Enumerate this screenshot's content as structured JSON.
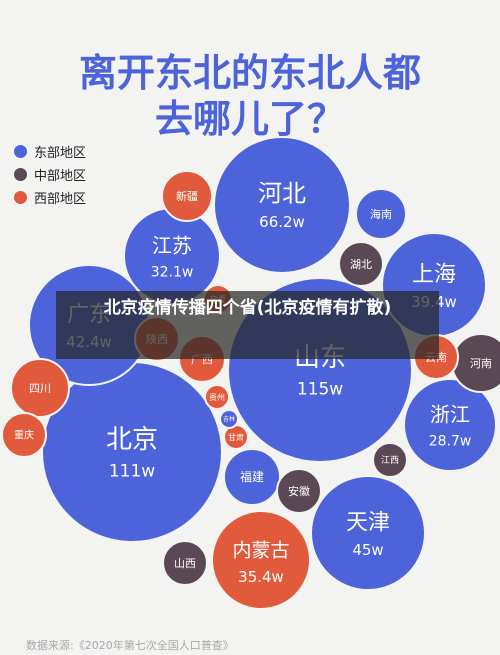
{
  "title": {
    "line1": "离开东北的东北人都",
    "line2": "去哪儿了？"
  },
  "legend": [
    {
      "label": "东部地区",
      "color": "#4d63d9"
    },
    {
      "label": "中部地区",
      "color": "#5a4855"
    },
    {
      "label": "西部地区",
      "color": "#e05a3b"
    }
  ],
  "banner": "北京疫情传播四个省(北京疫情有扩散)",
  "source": "数据来源:《2020年第七次全国人口普查》",
  "chart_data": {
    "type": "bubble",
    "unit": "w",
    "series_colors": {
      "东部地区": "#4d63d9",
      "中部地区": "#5a4855",
      "西部地区": "#e05a3b"
    },
    "bubbles": [
      {
        "name": "北京",
        "value": 111,
        "value_label": "111w",
        "region": "东部地区"
      },
      {
        "name": "山东",
        "value": 115,
        "value_label": "115w",
        "region": "东部地区"
      },
      {
        "name": "河北",
        "value": 66.2,
        "value_label": "66.2w",
        "region": "东部地区"
      },
      {
        "name": "天津",
        "value": 45,
        "value_label": "45w",
        "region": "东部地区"
      },
      {
        "name": "广东",
        "value": 42.4,
        "value_label": "42.4w",
        "region": "东部地区"
      },
      {
        "name": "上海",
        "value": 39.4,
        "value_label": "39.4w",
        "region": "东部地区"
      },
      {
        "name": "内蒙古",
        "value": 35.4,
        "value_label": "35.4w",
        "region": "西部地区"
      },
      {
        "name": "江苏",
        "value": 32.1,
        "value_label": "32.1w",
        "region": "东部地区"
      },
      {
        "name": "浙江",
        "value": 28.7,
        "value_label": "28.7w",
        "region": "东部地区"
      },
      {
        "name": "新疆",
        "value": null,
        "value_label": "",
        "region": "西部地区"
      },
      {
        "name": "海南",
        "value": null,
        "value_label": "",
        "region": "东部地区"
      },
      {
        "name": "湖北",
        "value": null,
        "value_label": "",
        "region": "中部地区"
      },
      {
        "name": "河南",
        "value": null,
        "value_label": "",
        "region": "中部地区"
      },
      {
        "name": "云南",
        "value": null,
        "value_label": "",
        "region": "西部地区"
      },
      {
        "name": "四川",
        "value": null,
        "value_label": "",
        "region": "西部地区"
      },
      {
        "name": "重庆",
        "value": null,
        "value_label": "",
        "region": "西部地区"
      },
      {
        "name": "陕西",
        "value": null,
        "value_label": "",
        "region": "西部地区"
      },
      {
        "name": "广西",
        "value": null,
        "value_label": "",
        "region": "西部地区"
      },
      {
        "name": "宁夏",
        "value": null,
        "value_label": "",
        "region": "西部地区"
      },
      {
        "name": "贵州",
        "value": null,
        "value_label": "",
        "region": "西部地区"
      },
      {
        "name": "甘肃",
        "value": null,
        "value_label": "",
        "region": "西部地区"
      },
      {
        "name": "福建",
        "value": null,
        "value_label": "",
        "region": "东部地区"
      },
      {
        "name": "安徽",
        "value": null,
        "value_label": "",
        "region": "中部地区"
      },
      {
        "name": "江西",
        "value": null,
        "value_label": "",
        "region": "中部地区"
      },
      {
        "name": "山西",
        "value": null,
        "value_label": "",
        "region": "中部地区"
      },
      {
        "name": "吉林",
        "value": null,
        "value_label": "",
        "region": "东部地区"
      }
    ]
  }
}
